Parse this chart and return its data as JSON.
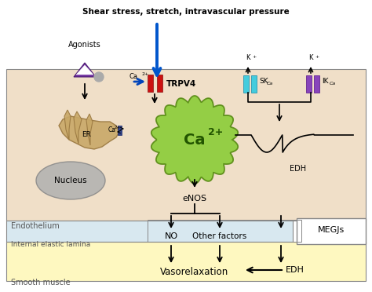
{
  "title": "Shear stress, stretch, intravascular pressure",
  "bg_white": "#ffffff",
  "endo_bg": "#f0dfc8",
  "iel_bg": "#d8e8f0",
  "sm_bg": "#fef8c0",
  "endothelium_label": "Endothelium",
  "iel_label": "Internal elastic lamina",
  "sm_label": "Smooth muscle",
  "agonists_label": "Agonists",
  "ca2plus_top": "Ca2+",
  "trpv4_label": "TRPV4",
  "k_label": "K+",
  "skca_label": "SKCa",
  "ikca_label": "IKCa",
  "ca2plus_big": "Ca2+",
  "er_label": "ER",
  "er_ca_label": "Ca2+",
  "nucleus_label": "Nucleus",
  "enos_label": "eNOS",
  "edh_label": "EDH",
  "no_label": "NO",
  "other_factors_label": "Other factors",
  "megjs_label": "MEGJs",
  "vasorelaxation_label": "Vasorelaxation",
  "edh_bottom_label": "EDH"
}
